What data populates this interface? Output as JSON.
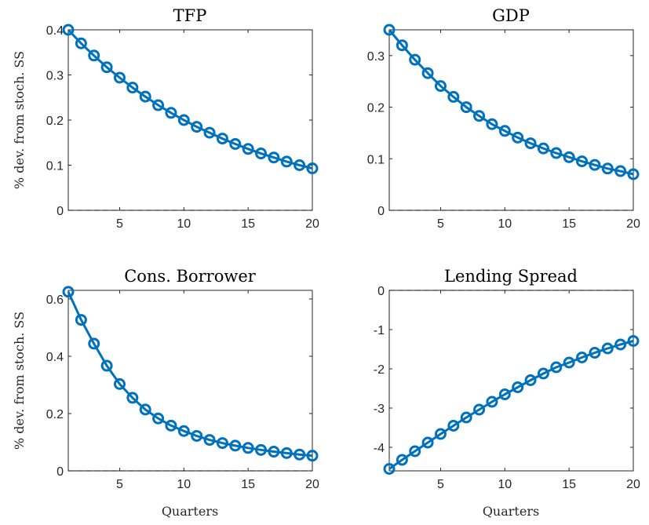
{
  "figure": {
    "line_color": "#0072BD",
    "axis_color": "#262626",
    "zero_line_color": "#000000"
  },
  "chart_data": [
    {
      "type": "line",
      "title": "TFP",
      "ylabel": "% dev. from stoch. SS",
      "xlabel": "",
      "xlim": [
        1,
        20
      ],
      "ylim": [
        0,
        0.4
      ],
      "xticks": [
        5,
        10,
        15,
        20
      ],
      "xtick_labels": [
        "5",
        "10",
        "15",
        "20"
      ],
      "yticks": [
        0,
        0.1,
        0.2,
        0.3,
        0.4
      ],
      "ytick_labels": [
        "0",
        "0.1",
        "0.2",
        "0.3",
        "0.4"
      ],
      "grid": false,
      "zero_line": true,
      "marker": "circle",
      "x": [
        1,
        2,
        3,
        4,
        5,
        6,
        7,
        8,
        9,
        10,
        11,
        12,
        13,
        14,
        15,
        16,
        17,
        18,
        19,
        20
      ],
      "series": [
        {
          "values": [
            0.4,
            0.37,
            0.343,
            0.317,
            0.294,
            0.272,
            0.252,
            0.233,
            0.216,
            0.2,
            0.185,
            0.172,
            0.159,
            0.147,
            0.136,
            0.126,
            0.117,
            0.108,
            0.1,
            0.093
          ]
        }
      ]
    },
    {
      "type": "line",
      "title": "GDP",
      "ylabel": "",
      "xlabel": "",
      "xlim": [
        1,
        20
      ],
      "ylim": [
        0,
        0.35
      ],
      "xticks": [
        5,
        10,
        15,
        20
      ],
      "xtick_labels": [
        "5",
        "10",
        "15",
        "20"
      ],
      "yticks": [
        0,
        0.1,
        0.2,
        0.3
      ],
      "ytick_labels": [
        "0",
        "0.1",
        "0.2",
        "0.3"
      ],
      "grid": false,
      "zero_line": true,
      "marker": "circle",
      "x": [
        1,
        2,
        3,
        4,
        5,
        6,
        7,
        8,
        9,
        10,
        11,
        12,
        13,
        14,
        15,
        16,
        17,
        18,
        19,
        20
      ],
      "series": [
        {
          "values": [
            0.35,
            0.32,
            0.292,
            0.266,
            0.241,
            0.22,
            0.2,
            0.183,
            0.167,
            0.154,
            0.141,
            0.13,
            0.12,
            0.111,
            0.103,
            0.095,
            0.088,
            0.081,
            0.076,
            0.07
          ]
        }
      ]
    },
    {
      "type": "line",
      "title": "Cons. Borrower",
      "ylabel": "% dev. from stoch. SS",
      "xlabel": "Quarters",
      "xlim": [
        1,
        20
      ],
      "ylim": [
        0,
        0.63
      ],
      "xticks": [
        5,
        10,
        15,
        20
      ],
      "xtick_labels": [
        "5",
        "10",
        "15",
        "20"
      ],
      "yticks": [
        0,
        0.2,
        0.4,
        0.6
      ],
      "ytick_labels": [
        "0",
        "0.2",
        "0.4",
        "0.6"
      ],
      "grid": false,
      "zero_line": true,
      "marker": "circle",
      "x": [
        1,
        2,
        3,
        4,
        5,
        6,
        7,
        8,
        9,
        10,
        11,
        12,
        13,
        14,
        15,
        16,
        17,
        18,
        19,
        20
      ],
      "series": [
        {
          "values": [
            0.625,
            0.527,
            0.444,
            0.367,
            0.303,
            0.255,
            0.214,
            0.183,
            0.158,
            0.139,
            0.122,
            0.108,
            0.097,
            0.088,
            0.08,
            0.073,
            0.067,
            0.062,
            0.057,
            0.053
          ]
        }
      ]
    },
    {
      "type": "line",
      "title": "Lending Spread",
      "ylabel": "",
      "xlabel": "Quarters",
      "xlim": [
        1,
        20
      ],
      "ylim": [
        -4.6,
        0
      ],
      "xticks": [
        5,
        10,
        15,
        20
      ],
      "xtick_labels": [
        "5",
        "10",
        "15",
        "20"
      ],
      "yticks": [
        -4,
        -3,
        -2,
        -1,
        0
      ],
      "ytick_labels": [
        "-4",
        "-3",
        "-2",
        "-1",
        "0"
      ],
      "grid": false,
      "zero_line": true,
      "marker": "circle",
      "x": [
        1,
        2,
        3,
        4,
        5,
        6,
        7,
        8,
        9,
        10,
        11,
        12,
        13,
        14,
        15,
        16,
        17,
        18,
        19,
        20
      ],
      "series": [
        {
          "values": [
            -4.55,
            -4.32,
            -4.1,
            -3.88,
            -3.66,
            -3.45,
            -3.24,
            -3.04,
            -2.84,
            -2.65,
            -2.47,
            -2.29,
            -2.12,
            -1.96,
            -1.84,
            -1.71,
            -1.59,
            -1.48,
            -1.38,
            -1.29
          ]
        }
      ]
    }
  ]
}
